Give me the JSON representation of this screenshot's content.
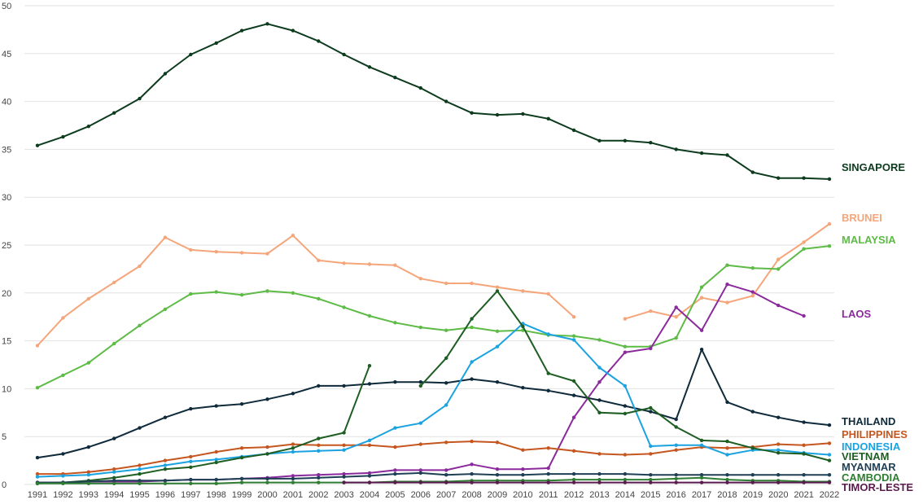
{
  "chart_data": {
    "type": "line",
    "title": "",
    "xlabel": "",
    "ylabel": "",
    "ylim": [
      0,
      50
    ],
    "yticks": [
      0,
      5,
      10,
      15,
      20,
      25,
      30,
      35,
      40,
      45,
      50
    ],
    "grid": true,
    "legend": "direct labels at right end of lines",
    "x": [
      1991,
      1992,
      1993,
      1994,
      1995,
      1996,
      1997,
      1998,
      1999,
      2000,
      2001,
      2002,
      2003,
      2004,
      2005,
      2006,
      2007,
      2008,
      2009,
      2010,
      2011,
      2012,
      2013,
      2014,
      2015,
      2016,
      2017,
      2018,
      2019,
      2020,
      2021,
      2022
    ],
    "series": [
      {
        "name": "SINGAPORE",
        "color": "#0d3b1e",
        "values": [
          35.4,
          36.3,
          37.4,
          38.8,
          40.3,
          42.9,
          44.9,
          46.1,
          47.4,
          48.1,
          47.4,
          46.3,
          44.9,
          43.6,
          42.5,
          41.4,
          40.0,
          38.8,
          38.6,
          38.7,
          38.2,
          37.0,
          35.9,
          35.9,
          35.7,
          35.0,
          34.6,
          34.4,
          32.6,
          32.0,
          32.0,
          31.9
        ]
      },
      {
        "name": "BRUNEI",
        "color": "#f5a57a",
        "values": [
          14.5,
          17.4,
          19.4,
          21.1,
          22.8,
          25.8,
          24.5,
          24.3,
          24.2,
          24.1,
          26.0,
          23.4,
          23.1,
          23.0,
          22.9,
          21.5,
          21.0,
          21.0,
          20.6,
          20.2,
          19.9,
          17.5,
          null,
          17.3,
          18.1,
          17.5,
          19.5,
          19.0,
          19.7,
          23.5,
          25.3,
          27.2
        ]
      },
      {
        "name": "MALAYSIA",
        "color": "#5dbb46",
        "values": [
          10.1,
          11.4,
          12.7,
          14.7,
          16.6,
          18.3,
          19.9,
          20.1,
          19.8,
          20.2,
          20.0,
          19.4,
          18.5,
          17.6,
          16.9,
          16.4,
          16.1,
          16.4,
          16.0,
          16.1,
          15.6,
          15.5,
          15.1,
          14.4,
          14.4,
          15.3,
          20.6,
          22.9,
          22.6,
          22.5,
          24.6,
          24.9
        ]
      },
      {
        "name": "LAOS",
        "color": "#8b2a9c",
        "values": [
          0.2,
          0.2,
          0.3,
          0.3,
          0.3,
          0.4,
          0.5,
          0.5,
          0.6,
          0.7,
          0.9,
          1.0,
          1.1,
          1.2,
          1.5,
          1.5,
          1.5,
          2.1,
          1.6,
          1.6,
          1.7,
          7.0,
          10.7,
          13.8,
          14.2,
          18.5,
          16.1,
          20.9,
          20.1,
          18.7,
          17.6,
          null
        ]
      },
      {
        "name": "THAILAND",
        "color": "#0f2a3a",
        "values": [
          2.8,
          3.2,
          3.9,
          4.8,
          5.9,
          7.0,
          7.9,
          8.2,
          8.4,
          8.9,
          9.5,
          10.3,
          10.3,
          10.5,
          10.7,
          10.7,
          10.6,
          11.0,
          10.7,
          10.1,
          9.8,
          9.3,
          8.8,
          8.2,
          7.6,
          6.8,
          14.1,
          8.6,
          7.6,
          7.0,
          6.5,
          6.2
        ]
      },
      {
        "name": "PHILIPPINES",
        "color": "#c5561f",
        "values": [
          1.1,
          1.1,
          1.3,
          1.6,
          2.0,
          2.5,
          2.9,
          3.4,
          3.8,
          3.9,
          4.2,
          4.1,
          4.1,
          4.1,
          3.9,
          4.2,
          4.4,
          4.5,
          4.4,
          3.6,
          3.8,
          3.5,
          3.2,
          3.1,
          3.2,
          3.6,
          3.9,
          3.8,
          3.9,
          4.2,
          4.1,
          4.3
        ]
      },
      {
        "name": "INDONESIA",
        "color": "#1aa3e0",
        "values": [
          0.8,
          0.9,
          1.0,
          1.3,
          1.6,
          2.0,
          2.4,
          2.6,
          2.9,
          3.2,
          3.4,
          3.5,
          3.6,
          4.6,
          5.9,
          6.4,
          8.3,
          12.8,
          14.4,
          16.8,
          15.7,
          15.1,
          12.2,
          10.3,
          4.0,
          4.1,
          4.1,
          3.1,
          3.6,
          3.6,
          3.3,
          3.1
        ]
      },
      {
        "name": "VIETNAM",
        "color": "#1e5e23",
        "values": [
          0.1,
          0.2,
          0.4,
          0.7,
          1.1,
          1.6,
          1.8,
          2.3,
          2.8,
          3.2,
          3.8,
          4.8,
          5.4,
          12.4,
          null,
          10.3,
          13.2,
          17.3,
          20.2,
          16.5,
          11.6,
          10.8,
          7.5,
          7.4,
          8.0,
          6.0,
          4.6,
          4.5,
          3.8,
          3.3,
          3.2,
          2.5
        ]
      },
      {
        "name": "MYANMAR",
        "color": "#1f3f55",
        "values": [
          0.2,
          0.2,
          0.3,
          0.4,
          0.4,
          0.4,
          0.5,
          0.5,
          0.6,
          0.6,
          0.6,
          0.7,
          0.8,
          0.9,
          1.1,
          1.2,
          1.0,
          1.1,
          1.0,
          1.0,
          1.1,
          1.1,
          1.1,
          1.1,
          1.0,
          1.0,
          1.0,
          1.0,
          1.0,
          1.0,
          1.0,
          1.0
        ]
      },
      {
        "name": "CAMBODIA",
        "color": "#2e7d32",
        "values": [
          0.1,
          0.1,
          0.1,
          0.1,
          0.1,
          0.1,
          0.1,
          0.1,
          0.2,
          0.2,
          0.2,
          0.2,
          0.2,
          0.2,
          0.3,
          0.3,
          0.3,
          0.4,
          0.4,
          0.4,
          0.4,
          0.5,
          0.5,
          0.5,
          0.5,
          0.6,
          0.7,
          0.5,
          0.4,
          0.4,
          0.3,
          0.3
        ]
      },
      {
        "name": "TIMOR-LESTE",
        "color": "#5b1a4f",
        "values": [
          null,
          null,
          null,
          null,
          null,
          null,
          null,
          null,
          null,
          null,
          null,
          null,
          0.2,
          0.2,
          0.2,
          0.2,
          0.2,
          0.2,
          0.2,
          0.2,
          0.2,
          0.2,
          0.2,
          0.2,
          0.2,
          0.2,
          0.2,
          0.2,
          0.2,
          0.2,
          0.2,
          0.2
        ]
      }
    ]
  }
}
